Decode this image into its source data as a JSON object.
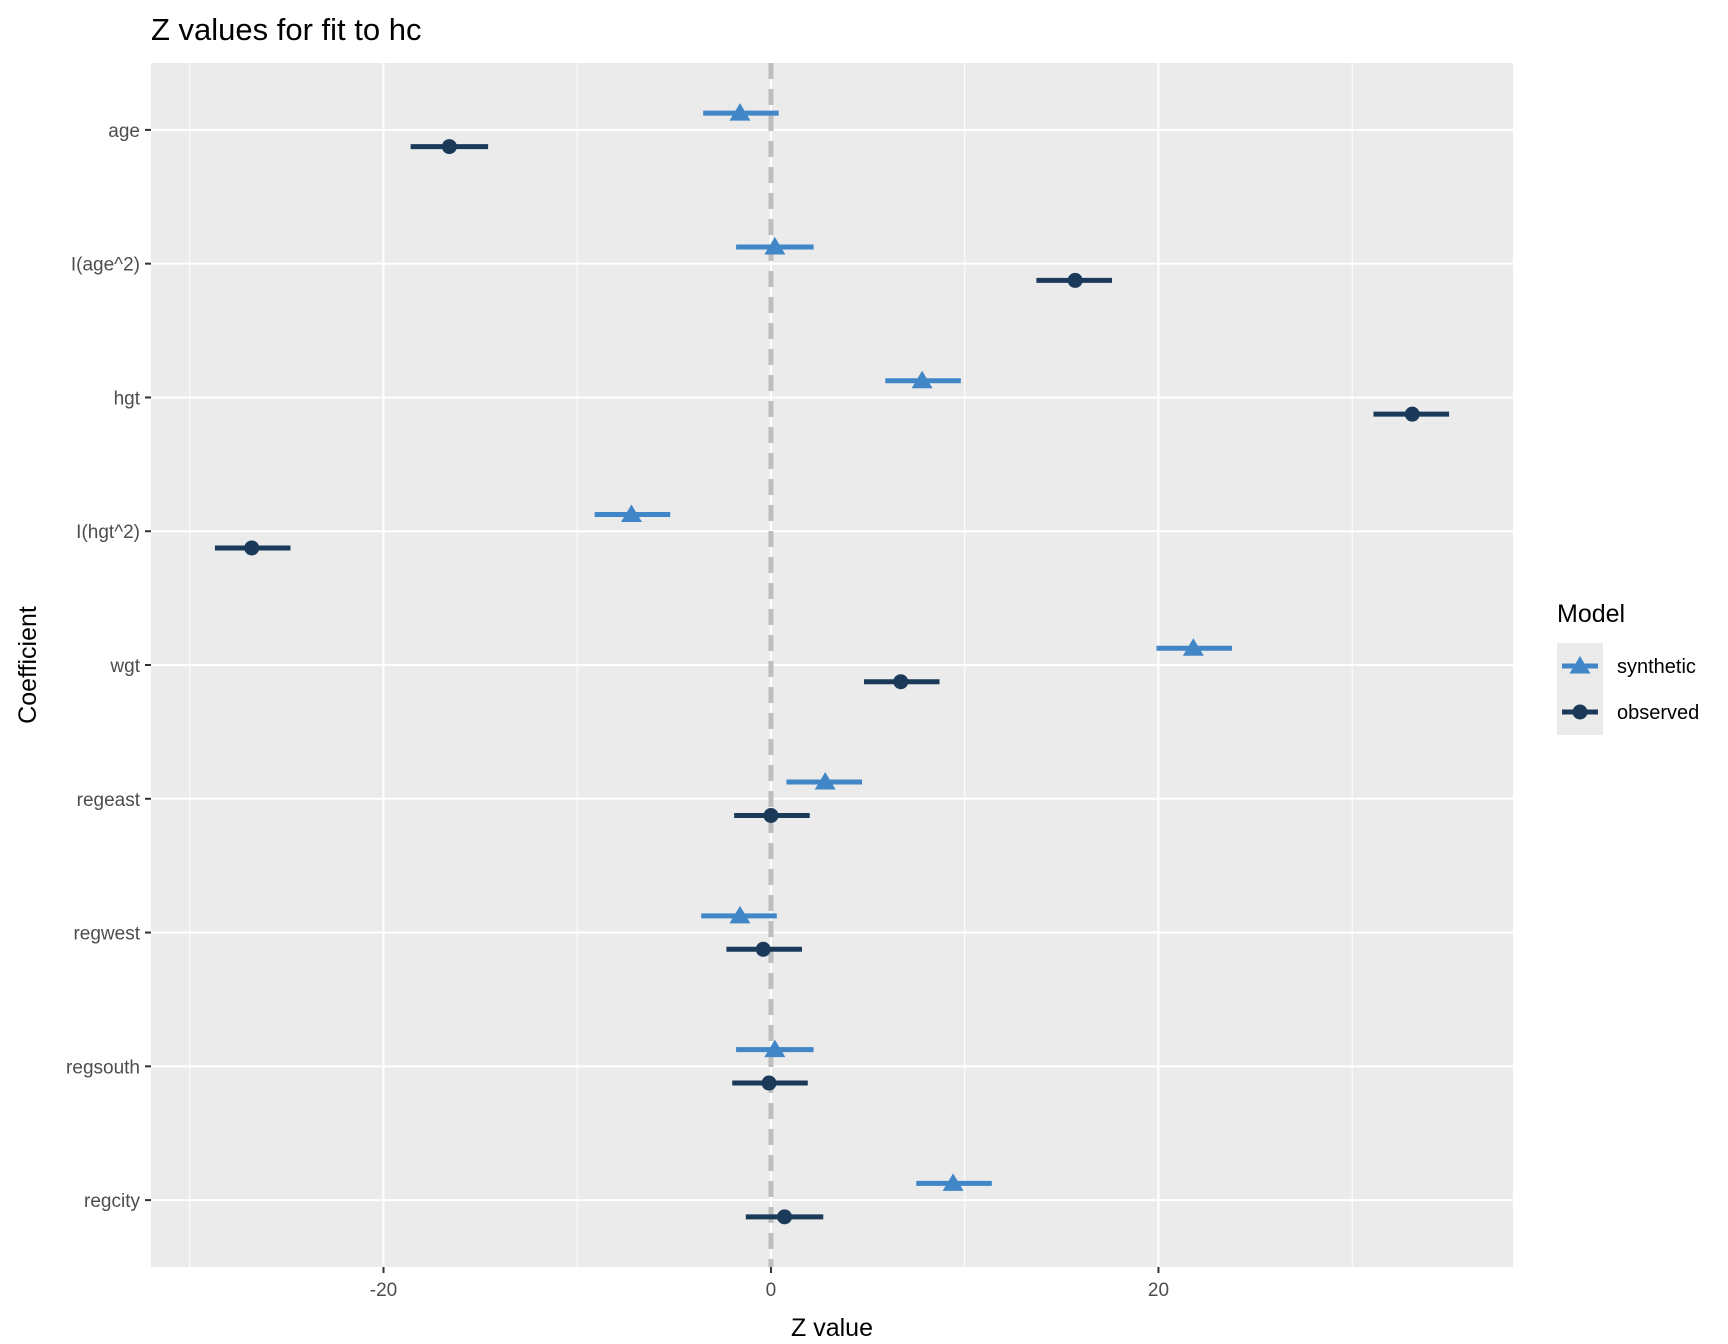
{
  "chart_data": {
    "type": "scatter",
    "title": "Z values for fit to hc",
    "xlabel": "Z value",
    "ylabel": "Coefficient",
    "xlim": [
      -32,
      38.3
    ],
    "x_ticks": [
      -20,
      0,
      20
    ],
    "x_minor_ticks": [
      -30,
      -10,
      10,
      30
    ],
    "reference_line": {
      "x": 0,
      "style": "dashed",
      "color": "#bebebe"
    },
    "categories": [
      "age",
      "I(age^2)",
      "hgt",
      "I(hgt^2)",
      "wgt",
      "regeast",
      "regwest",
      "regsouth",
      "regcity"
    ],
    "grid": true,
    "legend": {
      "title": "Model",
      "position": "right"
    },
    "series": [
      {
        "name": "synthetic",
        "color": "#4186c6",
        "marker": "triangle",
        "points": [
          {
            "category": "age",
            "z": -1.6,
            "low": -3.5,
            "high": 0.4
          },
          {
            "category": "I(age^2)",
            "z": 0.2,
            "low": -1.8,
            "high": 2.2
          },
          {
            "category": "hgt",
            "z": 7.8,
            "low": 5.9,
            "high": 9.8
          },
          {
            "category": "I(hgt^2)",
            "z": -7.2,
            "low": -9.1,
            "high": -5.2
          },
          {
            "category": "wgt",
            "z": 21.8,
            "low": 19.9,
            "high": 23.8
          },
          {
            "category": "regeast",
            "z": 2.8,
            "low": 0.8,
            "high": 4.7
          },
          {
            "category": "regwest",
            "z": -1.6,
            "low": -3.6,
            "high": 0.3
          },
          {
            "category": "regsouth",
            "z": 0.2,
            "low": -1.8,
            "high": 2.2
          },
          {
            "category": "regcity",
            "z": 9.4,
            "low": 7.5,
            "high": 11.4
          }
        ]
      },
      {
        "name": "observed",
        "color": "#1b3a5a",
        "marker": "circle",
        "points": [
          {
            "category": "age",
            "z": -16.6,
            "low": -18.6,
            "high": -14.6
          },
          {
            "category": "I(age^2)",
            "z": 15.7,
            "low": 13.7,
            "high": 17.6
          },
          {
            "category": "hgt",
            "z": 33.1,
            "low": 31.1,
            "high": 35.0
          },
          {
            "category": "I(hgt^2)",
            "z": -26.8,
            "low": -28.7,
            "high": -24.8
          },
          {
            "category": "wgt",
            "z": 6.7,
            "low": 4.8,
            "high": 8.7
          },
          {
            "category": "regeast",
            "z": 0.0,
            "low": -1.9,
            "high": 2.0
          },
          {
            "category": "regwest",
            "z": -0.4,
            "low": -2.3,
            "high": 1.6
          },
          {
            "category": "regsouth",
            "z": -0.1,
            "low": -2.0,
            "high": 1.9
          },
          {
            "category": "regcity",
            "z": 0.7,
            "low": -1.3,
            "high": 2.7
          }
        ]
      }
    ]
  }
}
